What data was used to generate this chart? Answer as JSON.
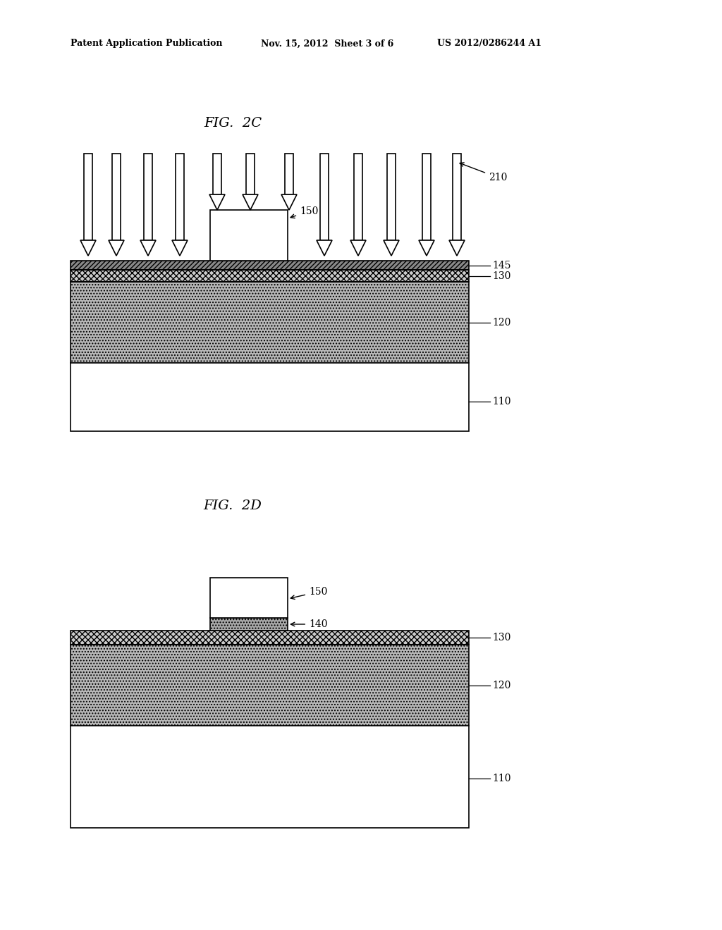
{
  "bg_color": "#ffffff",
  "fig_width": 10.24,
  "fig_height": 13.2,
  "header_left": "Patent Application Publication",
  "header_mid": "Nov. 15, 2012  Sheet 3 of 6",
  "header_right": "US 2012/0286244 A1",
  "fig2c_title": "FIG.  2C",
  "fig2d_title": "FIG.  2D",
  "label_fontsize": 10,
  "title_fontsize": 14,
  "header_fontsize": 9
}
